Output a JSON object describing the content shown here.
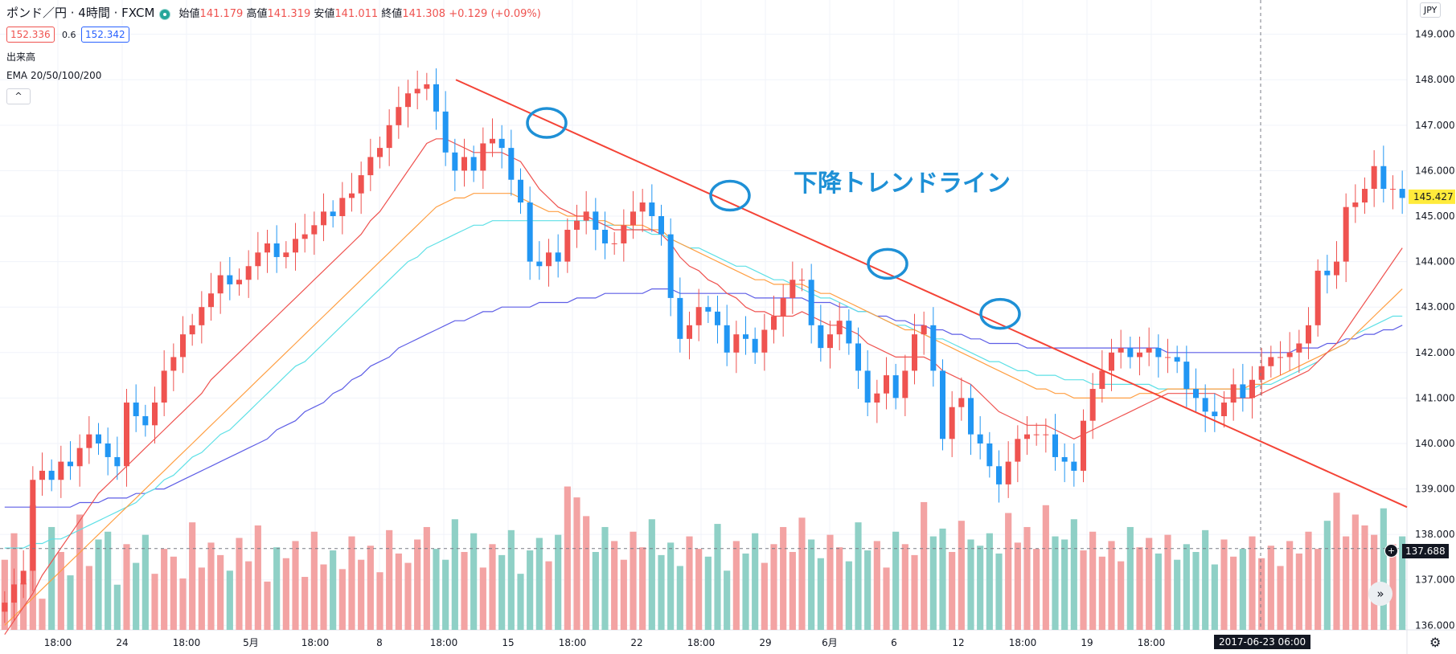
{
  "header": {
    "symbol_title": "ポンド／円 · 4時間 · FXCM",
    "open_label": "始値",
    "open_value": "141.179",
    "high_label": "高値",
    "high_value": "141.319",
    "low_label": "安値",
    "low_value": "141.011",
    "close_label": "終値",
    "close_value": "141.308",
    "change": "+0.129 (+0.09%)"
  },
  "trade": {
    "sell_price": "152.336",
    "spread": "0.6",
    "buy_price": "152.342"
  },
  "indicators": {
    "volume_label": "出来高",
    "ema_label": "EMA 20/50/100/200",
    "collapse_icon": "^"
  },
  "currency_button": "JPY",
  "annotation": "下降トレンドライン",
  "last_price_label": "145.427",
  "crosshair_price_label": "137.688",
  "crosshair_date_label": "2017-06-23  06:00",
  "colors": {
    "up": "#ef5350",
    "down": "#2196f3",
    "trendline": "#f44336",
    "circle": "#1e90d6",
    "ema20": "#ef5350",
    "ema50": "#ff9f43",
    "ema100": "#5ee0e6",
    "ema200": "#5e5ee6",
    "vol_up": "#f3a3a3",
    "vol_down": "#8fd0c6",
    "annotation": "#1e90d6"
  },
  "chart_data": {
    "type": "line",
    "title": "ポンド／円 · 4時間 · FXCM",
    "ylabel": "",
    "xlabel": "",
    "ylim": [
      135.9,
      149.4
    ],
    "y_ticks": [
      "149.000",
      "148.000",
      "147.000",
      "146.000",
      "145.000",
      "144.000",
      "143.000",
      "142.000",
      "141.000",
      "140.000",
      "139.000",
      "138.000",
      "137.000",
      "136.000"
    ],
    "x_ticks": [
      "18:00",
      "24",
      "18:00",
      "5月",
      "18:00",
      "8",
      "18:00",
      "15",
      "18:00",
      "22",
      "18:00",
      "29",
      "6月",
      "6",
      "12",
      "18:00",
      "19",
      "18:00"
    ],
    "close": [
      136.5,
      136.9,
      137.2,
      139.2,
      139.4,
      139.2,
      139.6,
      139.5,
      139.9,
      140.2,
      140.0,
      139.7,
      139.5,
      140.9,
      140.6,
      140.4,
      140.9,
      141.6,
      141.9,
      142.4,
      142.6,
      143.0,
      143.3,
      143.7,
      143.5,
      143.6,
      143.9,
      144.2,
      144.4,
      144.1,
      144.2,
      144.5,
      144.6,
      144.8,
      145.1,
      145.0,
      145.4,
      145.5,
      145.9,
      146.3,
      146.5,
      147.0,
      147.4,
      147.7,
      147.8,
      147.9,
      147.3,
      146.4,
      146.0,
      146.3,
      146.0,
      146.6,
      146.7,
      146.5,
      145.8,
      145.3,
      144.0,
      143.9,
      144.2,
      144.0,
      144.7,
      144.9,
      145.1,
      144.7,
      144.4,
      144.4,
      144.8,
      145.1,
      145.3,
      145.0,
      144.6,
      143.2,
      142.3,
      142.6,
      143.0,
      142.9,
      142.6,
      142.0,
      142.4,
      142.3,
      142.0,
      142.5,
      142.8,
      143.2,
      143.6,
      143.6,
      142.6,
      142.1,
      142.4,
      142.7,
      142.2,
      141.6,
      140.9,
      141.1,
      141.5,
      141.0,
      141.6,
      142.4,
      142.6,
      141.6,
      140.1,
      140.8,
      141.0,
      140.2,
      140.0,
      139.5,
      139.1,
      139.6,
      140.1,
      140.2,
      140.2,
      140.2,
      139.7,
      139.6,
      139.4,
      140.5,
      141.2,
      141.6,
      142.0,
      142.1,
      141.9,
      142.0,
      142.1,
      141.9,
      141.9,
      141.8,
      141.2,
      141.0,
      140.7,
      140.6,
      140.9,
      141.3,
      141.0,
      141.4,
      141.7,
      141.9,
      141.9,
      142.0,
      142.2,
      142.6,
      143.8,
      143.7,
      144.0,
      145.2,
      145.3,
      145.6,
      146.1,
      145.6,
      145.6,
      145.4
    ],
    "ema20": [
      135.8,
      136.1,
      136.4,
      136.7,
      137.1,
      137.4,
      137.7,
      138.0,
      138.3,
      138.6,
      138.9,
      139.1,
      139.3,
      139.5,
      139.7,
      139.9,
      140.1,
      140.3,
      140.5,
      140.7,
      140.9,
      141.1,
      141.4,
      141.6,
      141.8,
      142.0,
      142.2,
      142.4,
      142.6,
      142.8,
      143.0,
      143.2,
      143.4,
      143.6,
      143.8,
      144.0,
      144.2,
      144.4,
      144.6,
      144.9,
      145.1,
      145.4,
      145.7,
      146.0,
      146.3,
      146.6,
      146.7,
      146.7,
      146.6,
      146.5,
      146.4,
      146.4,
      146.4,
      146.4,
      146.3,
      146.2,
      145.9,
      145.6,
      145.4,
      145.2,
      145.1,
      145.0,
      145.0,
      144.9,
      144.8,
      144.7,
      144.7,
      144.7,
      144.7,
      144.7,
      144.6,
      144.4,
      144.1,
      143.9,
      143.8,
      143.6,
      143.5,
      143.3,
      143.2,
      143.0,
      142.9,
      142.9,
      142.8,
      142.8,
      142.8,
      142.9,
      142.8,
      142.7,
      142.6,
      142.6,
      142.5,
      142.4,
      142.2,
      142.1,
      142.0,
      141.9,
      141.9,
      141.9,
      141.9,
      141.8,
      141.6,
      141.5,
      141.4,
      141.3,
      141.1,
      140.9,
      140.7,
      140.6,
      140.5,
      140.4,
      140.4,
      140.4,
      140.3,
      140.2,
      140.1,
      140.2,
      140.3,
      140.4,
      140.5,
      140.6,
      140.7,
      140.8,
      140.9,
      141.0,
      141.1,
      141.1,
      141.1,
      141.1,
      141.1,
      141.1,
      141.0,
      141.0,
      141.0,
      141.0,
      141.1,
      141.2,
      141.3,
      141.4,
      141.5,
      141.6,
      141.8,
      142.0,
      142.2,
      142.5,
      142.8,
      143.1,
      143.4,
      143.7,
      144.0,
      144.3
    ],
    "ema50": [
      136.0,
      136.2,
      136.4,
      136.6,
      136.8,
      137.0,
      137.2,
      137.4,
      137.6,
      137.8,
      138.0,
      138.2,
      138.4,
      138.6,
      138.8,
      139.0,
      139.2,
      139.4,
      139.6,
      139.8,
      140.0,
      140.2,
      140.4,
      140.6,
      140.8,
      141.0,
      141.2,
      141.4,
      141.6,
      141.8,
      142.0,
      142.2,
      142.4,
      142.6,
      142.8,
      143.0,
      143.2,
      143.4,
      143.6,
      143.8,
      144.0,
      144.2,
      144.4,
      144.6,
      144.8,
      145.0,
      145.2,
      145.3,
      145.4,
      145.4,
      145.5,
      145.5,
      145.5,
      145.5,
      145.5,
      145.4,
      145.3,
      145.2,
      145.1,
      145.1,
      145.0,
      145.0,
      145.0,
      144.9,
      144.9,
      144.8,
      144.8,
      144.8,
      144.8,
      144.7,
      144.7,
      144.5,
      144.4,
      144.3,
      144.2,
      144.1,
      144.0,
      143.9,
      143.8,
      143.7,
      143.6,
      143.6,
      143.5,
      143.5,
      143.5,
      143.5,
      143.4,
      143.3,
      143.3,
      143.2,
      143.1,
      143.0,
      142.9,
      142.8,
      142.7,
      142.6,
      142.5,
      142.5,
      142.4,
      142.3,
      142.2,
      142.1,
      142.0,
      141.9,
      141.8,
      141.7,
      141.6,
      141.5,
      141.4,
      141.3,
      141.2,
      141.2,
      141.1,
      141.1,
      141.0,
      141.0,
      141.0,
      141.0,
      141.0,
      141.0,
      141.0,
      141.1,
      141.1,
      141.1,
      141.2,
      141.2,
      141.2,
      141.2,
      141.2,
      141.2,
      141.2,
      141.2,
      141.2,
      141.3,
      141.3,
      141.4,
      141.5,
      141.6,
      141.7,
      141.8,
      141.9,
      142.0,
      142.1,
      142.2,
      142.4,
      142.6,
      142.8,
      143.0,
      143.2,
      143.4
    ],
    "ema100": [
      137.7,
      137.7,
      137.7,
      137.8,
      137.8,
      137.9,
      137.9,
      138.0,
      138.1,
      138.2,
      138.3,
      138.4,
      138.5,
      138.6,
      138.7,
      138.9,
      139.0,
      139.2,
      139.3,
      139.5,
      139.7,
      139.8,
      140.0,
      140.2,
      140.3,
      140.5,
      140.7,
      140.9,
      141.1,
      141.3,
      141.5,
      141.7,
      141.8,
      142.0,
      142.2,
      142.4,
      142.6,
      142.8,
      143.0,
      143.2,
      143.4,
      143.6,
      143.8,
      144.0,
      144.1,
      144.3,
      144.4,
      144.5,
      144.6,
      144.7,
      144.8,
      144.8,
      144.9,
      144.9,
      144.9,
      144.9,
      144.9,
      144.9,
      144.9,
      144.9,
      144.9,
      144.9,
      144.9,
      144.9,
      144.8,
      144.8,
      144.8,
      144.7,
      144.7,
      144.6,
      144.6,
      144.5,
      144.4,
      144.3,
      144.3,
      144.2,
      144.1,
      144.0,
      143.9,
      143.9,
      143.8,
      143.7,
      143.6,
      143.6,
      143.5,
      143.4,
      143.3,
      143.2,
      143.2,
      143.1,
      143.0,
      142.9,
      142.9,
      142.8,
      142.7,
      142.6,
      142.6,
      142.5,
      142.4,
      142.3,
      142.3,
      142.2,
      142.1,
      142.0,
      141.9,
      141.8,
      141.8,
      141.7,
      141.6,
      141.6,
      141.5,
      141.5,
      141.5,
      141.4,
      141.4,
      141.4,
      141.3,
      141.3,
      141.3,
      141.3,
      141.3,
      141.3,
      141.3,
      141.2,
      141.2,
      141.2,
      141.2,
      141.2,
      141.2,
      141.2,
      141.2,
      141.2,
      141.2,
      141.2,
      141.3,
      141.3,
      141.4,
      141.5,
      141.6,
      141.7,
      141.8,
      142.0,
      142.1,
      142.2,
      142.4,
      142.5,
      142.6,
      142.7,
      142.8,
      142.8
    ],
    "ema200": [
      138.6,
      138.6,
      138.6,
      138.6,
      138.6,
      138.6,
      138.6,
      138.6,
      138.7,
      138.7,
      138.7,
      138.8,
      138.8,
      138.8,
      138.9,
      138.9,
      139.0,
      139.0,
      139.1,
      139.2,
      139.3,
      139.4,
      139.5,
      139.6,
      139.7,
      139.8,
      139.9,
      140.0,
      140.1,
      140.3,
      140.4,
      140.5,
      140.7,
      140.8,
      140.9,
      141.1,
      141.2,
      141.4,
      141.5,
      141.7,
      141.8,
      141.9,
      142.1,
      142.2,
      142.3,
      142.4,
      142.5,
      142.6,
      142.7,
      142.7,
      142.8,
      142.9,
      142.9,
      143.0,
      143.0,
      143.0,
      143.0,
      143.1,
      143.1,
      143.1,
      143.1,
      143.2,
      143.2,
      143.2,
      143.3,
      143.3,
      143.3,
      143.3,
      143.3,
      143.4,
      143.4,
      143.4,
      143.3,
      143.3,
      143.3,
      143.3,
      143.3,
      143.3,
      143.3,
      143.3,
      143.2,
      143.2,
      143.2,
      143.2,
      143.2,
      143.2,
      143.1,
      143.1,
      143.1,
      143.0,
      143.0,
      142.9,
      142.9,
      142.8,
      142.8,
      142.7,
      142.7,
      142.6,
      142.6,
      142.5,
      142.5,
      142.4,
      142.4,
      142.3,
      142.3,
      142.2,
      142.2,
      142.2,
      142.2,
      142.1,
      142.1,
      142.1,
      142.1,
      142.1,
      142.1,
      142.1,
      142.1,
      142.1,
      142.1,
      142.1,
      142.1,
      142.1,
      142.1,
      142.1,
      142.0,
      142.0,
      142.0,
      142.0,
      142.0,
      142.0,
      142.0,
      142.0,
      142.0,
      142.0,
      142.0,
      142.0,
      142.0,
      142.0,
      142.1,
      142.1,
      142.1,
      142.2,
      142.2,
      142.3,
      142.3,
      142.4,
      142.4,
      142.5,
      142.5,
      142.6
    ],
    "volume": [
      0.45,
      0.62,
      0.3,
      0.8,
      0.2,
      0.66,
      0.5,
      0.35,
      0.74,
      0.41,
      0.58,
      0.63,
      0.29,
      0.55,
      0.43,
      0.61,
      0.36,
      0.52,
      0.47,
      0.33,
      0.69,
      0.4,
      0.56,
      0.48,
      0.38,
      0.59,
      0.44,
      0.67,
      0.31,
      0.53,
      0.46,
      0.57,
      0.34,
      0.63,
      0.42,
      0.51,
      0.39,
      0.6,
      0.45,
      0.54,
      0.37,
      0.64,
      0.49,
      0.43,
      0.58,
      0.66,
      0.52,
      0.45,
      0.71,
      0.5,
      0.62,
      0.4,
      0.55,
      0.48,
      0.64,
      0.36,
      0.51,
      0.59,
      0.44,
      0.61,
      0.92,
      0.85,
      0.73,
      0.5,
      0.66,
      0.57,
      0.45,
      0.63,
      0.53,
      0.71,
      0.48,
      0.56,
      0.41,
      0.6,
      0.52,
      0.47,
      0.68,
      0.38,
      0.57,
      0.49,
      0.62,
      0.43,
      0.55,
      0.66,
      0.5,
      0.72,
      0.58,
      0.46,
      0.61,
      0.53,
      0.44,
      0.69,
      0.51,
      0.57,
      0.4,
      0.63,
      0.55,
      0.48,
      0.82,
      0.6,
      0.65,
      0.5,
      0.7,
      0.58,
      0.54,
      0.62,
      0.49,
      0.75,
      0.56,
      0.66,
      0.52,
      0.8,
      0.6,
      0.58,
      0.71,
      0.51,
      0.63,
      0.47,
      0.57,
      0.44,
      0.66,
      0.53,
      0.59,
      0.49,
      0.61,
      0.45,
      0.55,
      0.5,
      0.64,
      0.42,
      0.58,
      0.47,
      0.52,
      0.6,
      0.46,
      0.54,
      0.41,
      0.57,
      0.49,
      0.63,
      0.52,
      0.7,
      0.88,
      0.6,
      0.74,
      0.67,
      0.61,
      0.78,
      0.55,
      0.6
    ]
  }
}
